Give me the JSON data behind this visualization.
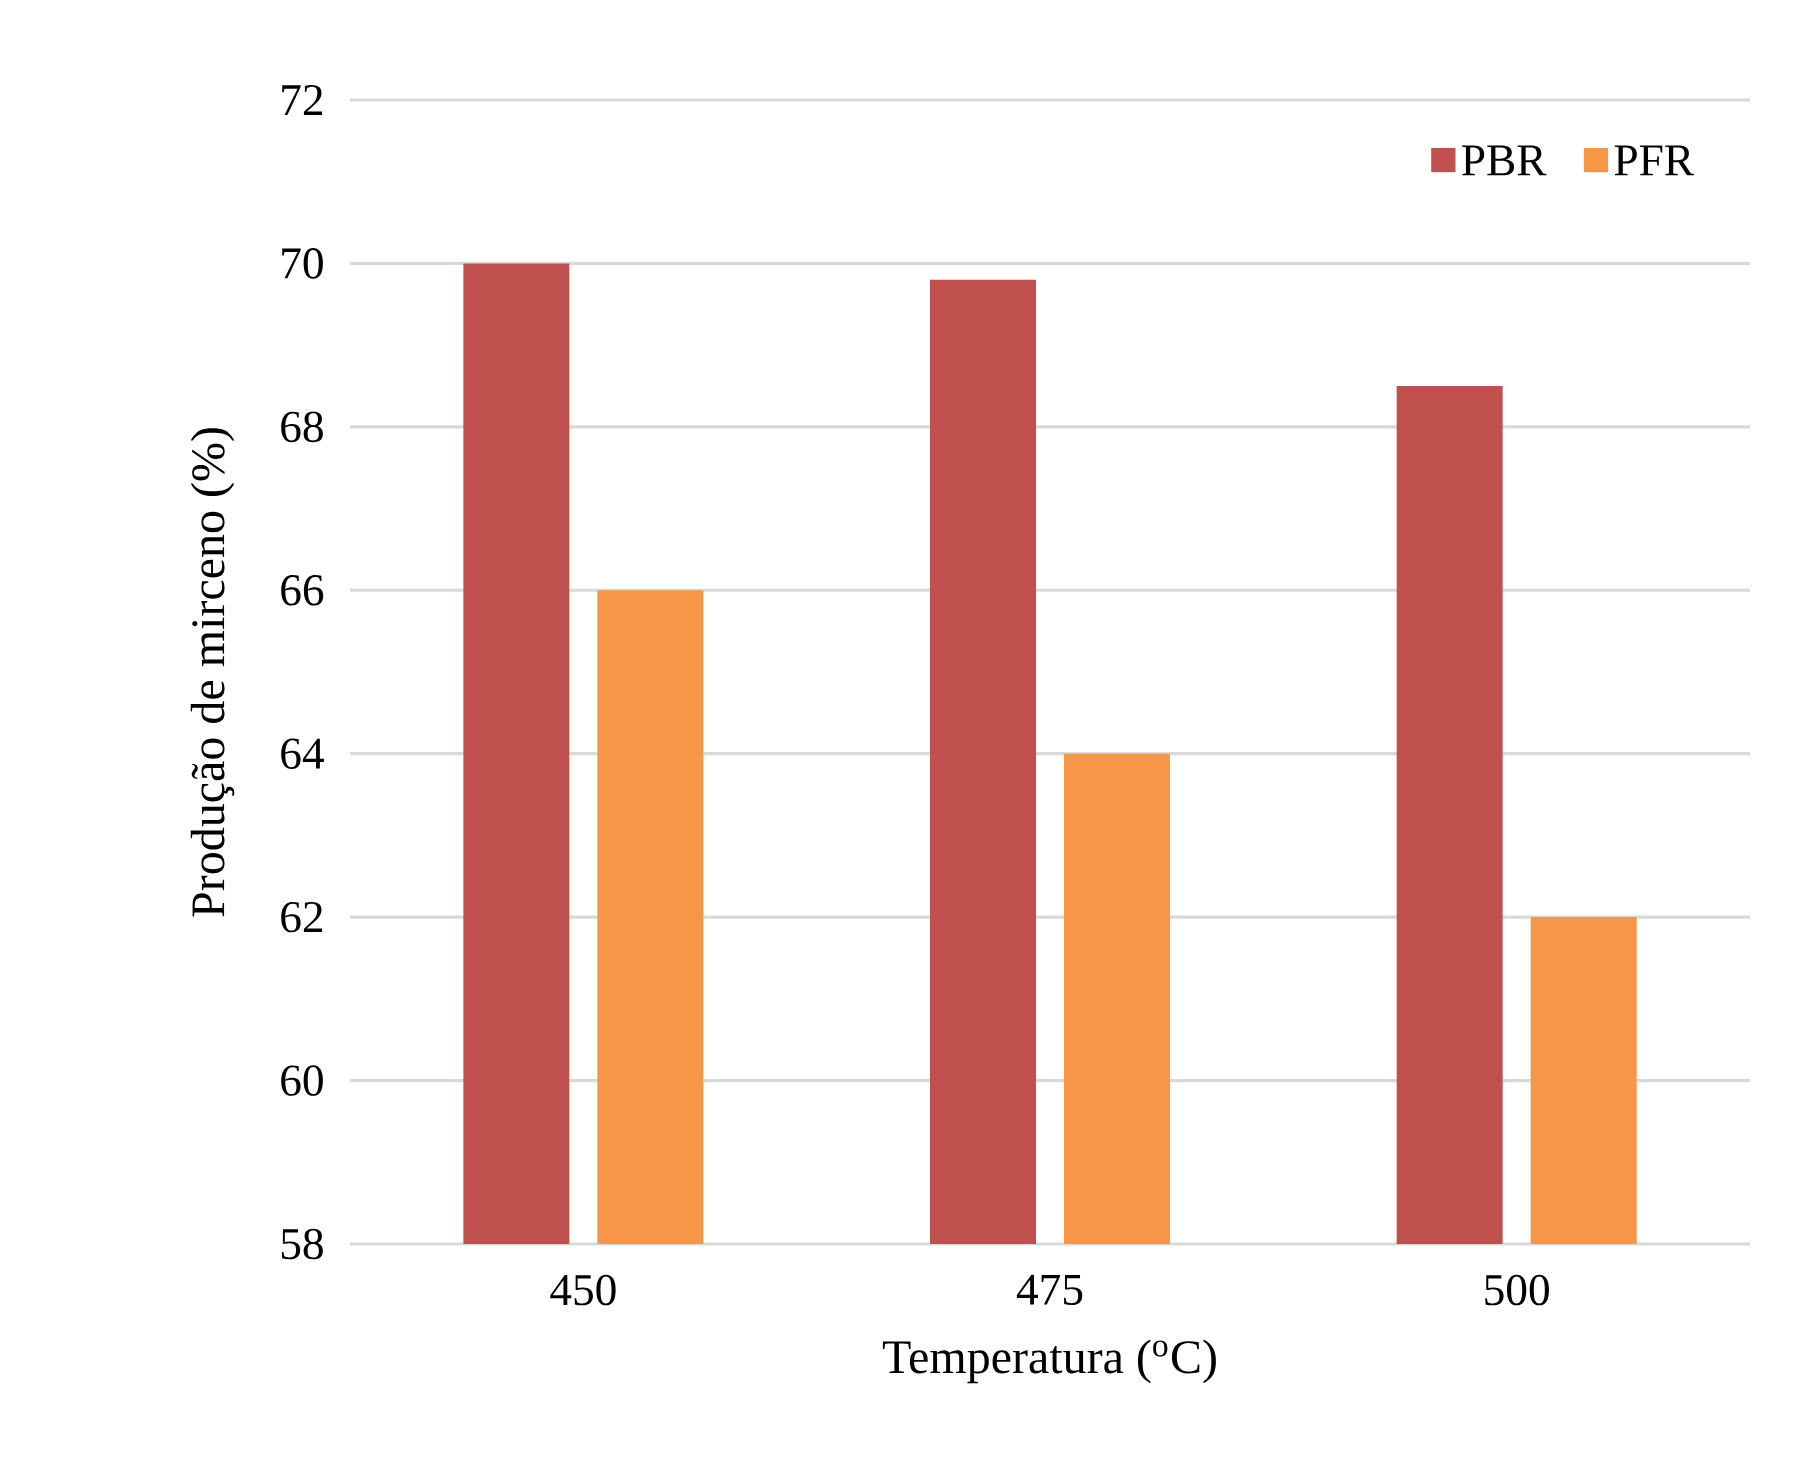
{
  "chart_data": {
    "type": "bar",
    "xlabel": "Temperatura ($^{o}$C)",
    "ylabel": "Produção de mirceno (%)",
    "categories": [
      "450",
      "475",
      "500"
    ],
    "series": [
      {
        "name": "PBR",
        "color": "#c0504d",
        "values": [
          70,
          69.8,
          68.5
        ]
      },
      {
        "name": "PFR",
        "color": "#f79646",
        "values": [
          66,
          64,
          62
        ]
      }
    ],
    "ylim": [
      58,
      72
    ],
    "yticks": [
      58,
      60,
      62,
      64,
      66,
      68,
      70,
      72
    ],
    "grid": "y",
    "legend": "top right"
  }
}
